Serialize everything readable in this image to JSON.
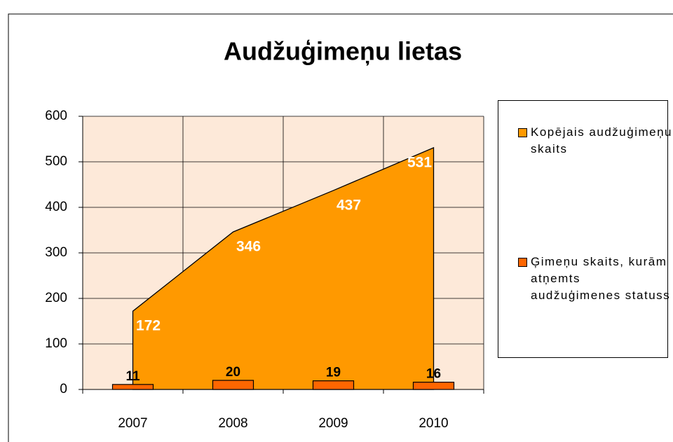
{
  "chart_data": {
    "type": "area",
    "title": "Audžuģimeņu lietas",
    "categories": [
      "2007",
      "2008",
      "2009",
      "2010"
    ],
    "series": [
      {
        "name": "Kopējais audžuģimeņu skaits",
        "type": "area",
        "color": "#ff9900",
        "values": [
          172,
          346,
          437,
          531
        ]
      },
      {
        "name": "Ģimeņu skaits, kurām atņemts audžuģimenes statuss",
        "type": "bar",
        "color": "#ff6600",
        "values": [
          11,
          20,
          19,
          16
        ]
      }
    ],
    "ylim": [
      0,
      600
    ],
    "yticks": [
      0,
      100,
      200,
      300,
      400,
      500,
      600
    ],
    "grid": true,
    "legend": "right"
  }
}
